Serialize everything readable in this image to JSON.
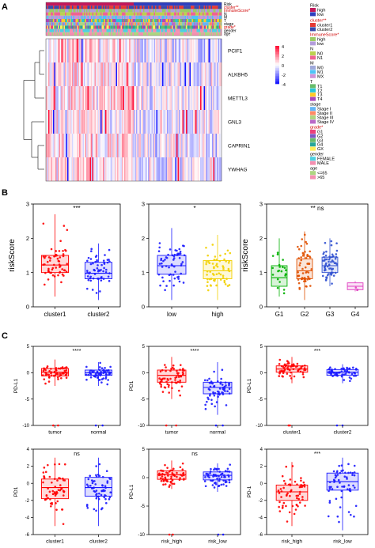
{
  "panel_labels": [
    "A",
    "B",
    "C"
  ],
  "heatmap": {
    "annotation_tracks": [
      "Risk",
      "cluster**",
      "ImmuneScore*",
      "N",
      "M",
      "T",
      "stage",
      "grade*",
      "gender",
      "age"
    ],
    "genes": [
      "PCIF1",
      "ALKBH5",
      "METTL3",
      "GNL3",
      "CAPRIN1",
      "YWHAG"
    ],
    "color_key": [
      "4",
      "2",
      "0",
      "-2",
      "-4"
    ],
    "legend": [
      {
        "title": "Risk",
        "items": [
          {
            "label": "high",
            "color": "#c2185b"
          },
          {
            "label": "low",
            "color": "#2e3fbf"
          }
        ]
      },
      {
        "title": "cluster**",
        "items": [
          {
            "label": "cluster1",
            "color": "#e53935"
          },
          {
            "label": "cluster2",
            "color": "#3949ab"
          }
        ]
      },
      {
        "title": "ImmuneScore*",
        "items": [
          {
            "label": "high",
            "color": "#9ccc65"
          },
          {
            "label": "low",
            "color": "#b39ddb"
          }
        ]
      },
      {
        "title": "N",
        "items": [
          {
            "label": "N0",
            "color": "#bcd14f"
          },
          {
            "label": "N1",
            "color": "#f06292"
          }
        ]
      },
      {
        "title": "M",
        "items": [
          {
            "label": "M0",
            "color": "#9fa8da"
          },
          {
            "label": "M1",
            "color": "#4fc3f7"
          },
          {
            "label": "MX",
            "color": "#ce93d8"
          }
        ]
      },
      {
        "title": "T",
        "items": [
          {
            "label": "T1",
            "color": "#66bb6a"
          },
          {
            "label": "T2",
            "color": "#26c6da"
          },
          {
            "label": "T3",
            "color": "#ffca28"
          },
          {
            "label": "T4",
            "color": "#ab47bc"
          }
        ]
      },
      {
        "title": "stage",
        "items": [
          {
            "label": "Stage I",
            "color": "#64b5f6"
          },
          {
            "label": "Stage II",
            "color": "#ff8a65"
          },
          {
            "label": "Stage III",
            "color": "#aed581"
          },
          {
            "label": "Stage IV",
            "color": "#ba68c8"
          }
        ]
      },
      {
        "title": "grade*",
        "items": [
          {
            "label": "G1",
            "color": "#ec407a"
          },
          {
            "label": "G2",
            "color": "#7e57c2"
          },
          {
            "label": "G3",
            "color": "#66bb6a"
          },
          {
            "label": "G4",
            "color": "#26a69a"
          },
          {
            "label": "GX",
            "color": "#ffee58"
          }
        ]
      },
      {
        "title": "gender",
        "items": [
          {
            "label": "FEMALE",
            "color": "#4dd0e1"
          },
          {
            "label": "MALE",
            "color": "#f48fb1"
          }
        ]
      },
      {
        "title": "age",
        "items": [
          {
            "label": "<=65",
            "color": "#aed581"
          },
          {
            "label": ">65",
            "color": "#f48fb1"
          }
        ]
      }
    ]
  },
  "chart_data": [
    {
      "type": "box",
      "id": "b1",
      "ylabel": "riskScore",
      "ylim": [
        0,
        3
      ],
      "yticks": [
        "0",
        "1",
        "2",
        "3"
      ],
      "significance": "***",
      "categories": [
        "cluster1",
        "cluster2"
      ],
      "colors": [
        "#ff0000",
        "#1a1aff"
      ],
      "boxes": [
        {
          "min": 0.3,
          "q1": 1.0,
          "median": 1.22,
          "q3": 1.5,
          "max": 2.7
        },
        {
          "min": 0.2,
          "q1": 0.82,
          "median": 0.98,
          "q3": 1.3,
          "max": 1.85
        }
      ]
    },
    {
      "type": "box",
      "id": "b2",
      "ylabel": "",
      "ylim": [
        0,
        3
      ],
      "yticks": [
        "0",
        "1",
        "2",
        "3"
      ],
      "significance": "*",
      "categories": [
        "low",
        "high"
      ],
      "colors": [
        "#1a1aff",
        "#f2d000"
      ],
      "boxes": [
        {
          "min": 0.2,
          "q1": 0.95,
          "median": 1.2,
          "q3": 1.5,
          "max": 2.3
        },
        {
          "min": 0.2,
          "q1": 0.82,
          "median": 1.05,
          "q3": 1.35,
          "max": 2.1
        }
      ]
    },
    {
      "type": "box",
      "id": "b3",
      "ylabel": "riskScore",
      "ylim": [
        0,
        3
      ],
      "yticks": [
        "0",
        "1",
        "2",
        "3"
      ],
      "significance": "** ns",
      "categories": [
        "G1",
        "G2",
        "G3",
        "G4"
      ],
      "colors": [
        "#00b000",
        "#e05000",
        "#3050d0",
        "#e040c0"
      ],
      "boxes": [
        {
          "min": 0.3,
          "q1": 0.6,
          "median": 0.85,
          "q3": 1.2,
          "max": 2.0
        },
        {
          "min": 0.2,
          "q1": 0.82,
          "median": 1.05,
          "q3": 1.4,
          "max": 2.2
        },
        {
          "min": 0.6,
          "q1": 1.0,
          "median": 1.2,
          "q3": 1.45,
          "max": 2.0
        },
        {
          "min": 0.45,
          "q1": 0.5,
          "median": 0.6,
          "q3": 0.7,
          "max": 0.75
        }
      ]
    },
    {
      "type": "box",
      "id": "c1",
      "ylabel": "PD-L1",
      "ylim": [
        -10,
        5
      ],
      "yticks": [
        "-10",
        "-5",
        "0",
        "5"
      ],
      "significance": "****",
      "categories": [
        "tumor",
        "normal"
      ],
      "colors": [
        "#ff0000",
        "#1a1aff"
      ],
      "boxes": [
        {
          "min": -2.5,
          "q1": -0.6,
          "median": 0.1,
          "q3": 0.8,
          "max": 2.5
        },
        {
          "min": -2.5,
          "q1": -0.5,
          "median": 0.0,
          "q3": 0.5,
          "max": 2.0
        }
      ]
    },
    {
      "type": "box",
      "id": "c2",
      "ylabel": "PD1",
      "ylim": [
        -10,
        5
      ],
      "yticks": [
        "-10",
        "-5",
        "0",
        "5"
      ],
      "significance": "****",
      "categories": [
        "tumor",
        "normal"
      ],
      "colors": [
        "#ff0000",
        "#1a1aff"
      ],
      "boxes": [
        {
          "min": -5.0,
          "q1": -1.8,
          "median": -0.5,
          "q3": 0.5,
          "max": 3.0
        },
        {
          "min": -8.0,
          "q1": -4.0,
          "median": -2.8,
          "q3": -1.8,
          "max": 2.0
        }
      ]
    },
    {
      "type": "box",
      "id": "c3",
      "ylabel": "PD-L1",
      "ylim": [
        -10,
        5
      ],
      "yticks": [
        "-10",
        "-5",
        "0",
        "5"
      ],
      "significance": "***",
      "categories": [
        "cluster1",
        "cluster2"
      ],
      "colors": [
        "#ff0000",
        "#1a1aff"
      ],
      "boxes": [
        {
          "min": -2.0,
          "q1": 0.1,
          "median": 0.7,
          "q3": 1.3,
          "max": 3.0
        },
        {
          "min": -2.0,
          "q1": -0.5,
          "median": 0.1,
          "q3": 0.6,
          "max": 1.6
        }
      ]
    },
    {
      "type": "box",
      "id": "c4",
      "ylabel": "PD1",
      "ylim": [
        -6,
        4
      ],
      "yticks": [
        "-6",
        "-4",
        "-2",
        "0",
        "2",
        "4"
      ],
      "significance": "ns",
      "categories": [
        "cluster1",
        "cluster2"
      ],
      "colors": [
        "#ff0000",
        "#1a1aff"
      ],
      "boxes": [
        {
          "min": -5.0,
          "q1": -1.8,
          "median": -0.5,
          "q3": 0.5,
          "max": 3.0
        },
        {
          "min": -5.0,
          "q1": -1.5,
          "median": -0.5,
          "q3": 0.7,
          "max": 3.0
        }
      ]
    },
    {
      "type": "box",
      "id": "c5",
      "ylabel": "PD-L1",
      "ylim": [
        -10,
        5
      ],
      "yticks": [
        "-10",
        "-5",
        "0",
        "5"
      ],
      "significance": "ns",
      "categories": [
        "risk_high",
        "risk_low"
      ],
      "colors": [
        "#ff0000",
        "#1a1aff"
      ],
      "boxes": [
        {
          "min": -2.0,
          "q1": -0.3,
          "median": 0.5,
          "q3": 1.2,
          "max": 3.0
        },
        {
          "min": -2.5,
          "q1": -0.4,
          "median": 0.4,
          "q3": 1.0,
          "max": 2.5
        }
      ]
    },
    {
      "type": "box",
      "id": "c6",
      "ylabel": "PD-1",
      "ylim": [
        -6,
        4
      ],
      "yticks": [
        "-6",
        "-4",
        "-2",
        "0",
        "2",
        "4"
      ],
      "significance": "***",
      "categories": [
        "risk_high",
        "risk_low"
      ],
      "colors": [
        "#ff0000",
        "#1a1aff"
      ],
      "boxes": [
        {
          "min": -5.0,
          "q1": -2.0,
          "median": -1.0,
          "q3": -0.2,
          "max": 2.5
        },
        {
          "min": -5.5,
          "q1": -0.8,
          "median": 0.2,
          "q3": 1.2,
          "max": 3.0
        }
      ]
    }
  ]
}
